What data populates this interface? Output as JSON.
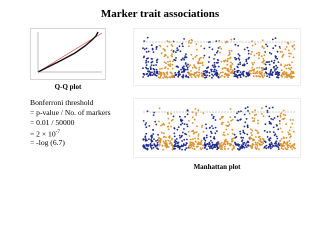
{
  "title": "Marker trait associations",
  "qq_caption": "Q-Q plot",
  "bonferroni": [
    "Bonferroni threshold",
    "= p-value /  No. of markers",
    "= 0.01 / 50000",
    {
      "base": "= 2 × 10",
      "sup": "-7"
    },
    "= -log (6.7)"
  ],
  "manhattan_caption": "Manhattan plot"
}
